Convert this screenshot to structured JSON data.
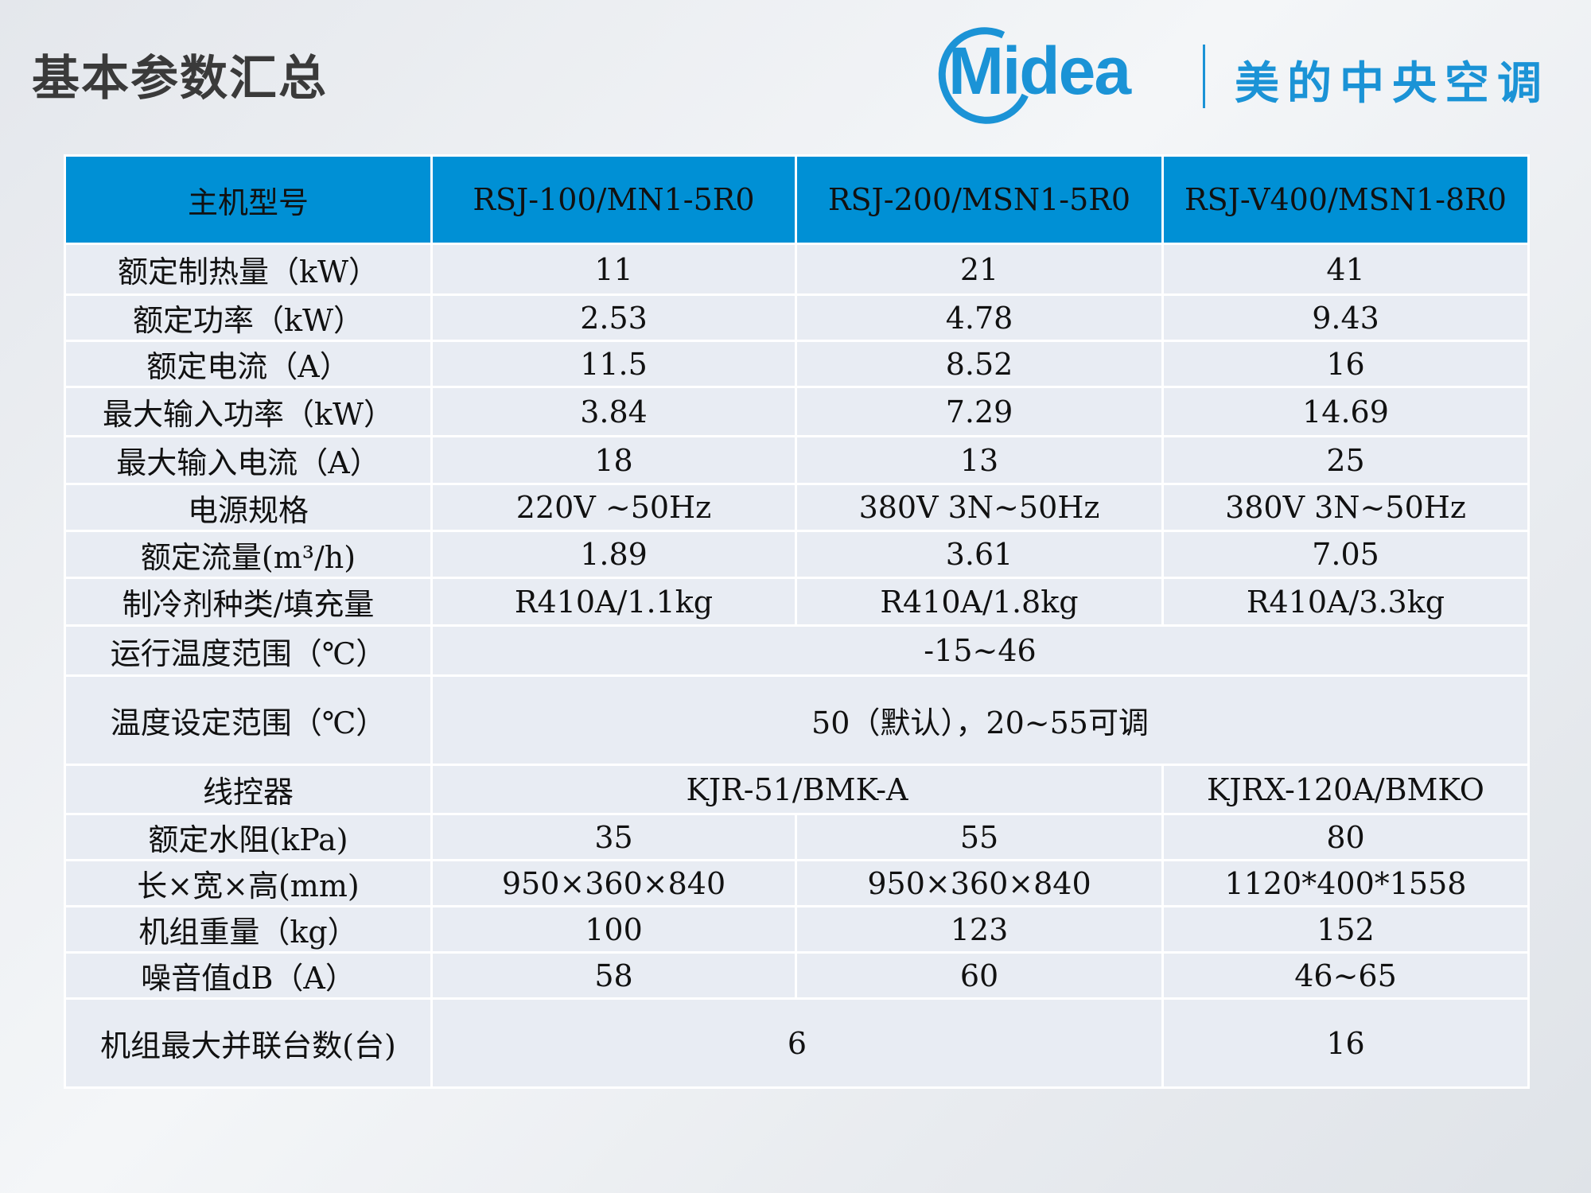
{
  "title": "基本参数汇总",
  "logo": {
    "brand": "Midea",
    "cn": "美的中央空调",
    "color": "#1b93d6"
  },
  "table": {
    "header": [
      "主机型号",
      "RSJ-100/MN1-5R0",
      "RSJ-200/MSN1-5R0",
      "RSJ-V400/MSN1-8R0"
    ],
    "header_color": "#0090d5",
    "rows": [
      [
        "额定制热量（kW）",
        "11",
        "21",
        "41"
      ],
      [
        "额定功率（kW）",
        "2.53",
        "4.78",
        "9.43"
      ],
      [
        "额定电流（A）",
        "11.5",
        "8.52",
        "16"
      ],
      [
        "最大输入功率（kW）",
        "3.84",
        "7.29",
        "14.69"
      ],
      [
        "最大输入电流（A）",
        "18",
        "13",
        "25"
      ],
      [
        "电源规格",
        "220V ~50Hz",
        "380V 3N~50Hz",
        "380V 3N~50Hz"
      ],
      [
        "额定流量(m³/h)",
        "1.89",
        "3.61",
        "7.05"
      ],
      [
        "制冷剂种类/填充量",
        "R410A/1.1kg",
        "R410A/1.8kg",
        "R410A/3.3kg"
      ],
      [
        "运行温度范围（℃）",
        "-15~46"
      ],
      [
        "温度设定范围（℃）",
        "50（默认），20~55可调"
      ],
      [
        "线控器",
        "KJR-51/BMK-A",
        "KJRX-120A/BMKO"
      ],
      [
        "额定水阻(kPa)",
        "35",
        "55",
        "80"
      ],
      [
        "长×宽×高(mm)",
        "950×360×840",
        "950×360×840",
        "1120*400*1558"
      ],
      [
        "机组重量（kg）",
        "100",
        "123",
        "152"
      ],
      [
        "噪音值dB（A）",
        "58",
        "60",
        "46~65"
      ],
      [
        "机组最大并联台数(台)",
        "6",
        "16"
      ]
    ]
  }
}
